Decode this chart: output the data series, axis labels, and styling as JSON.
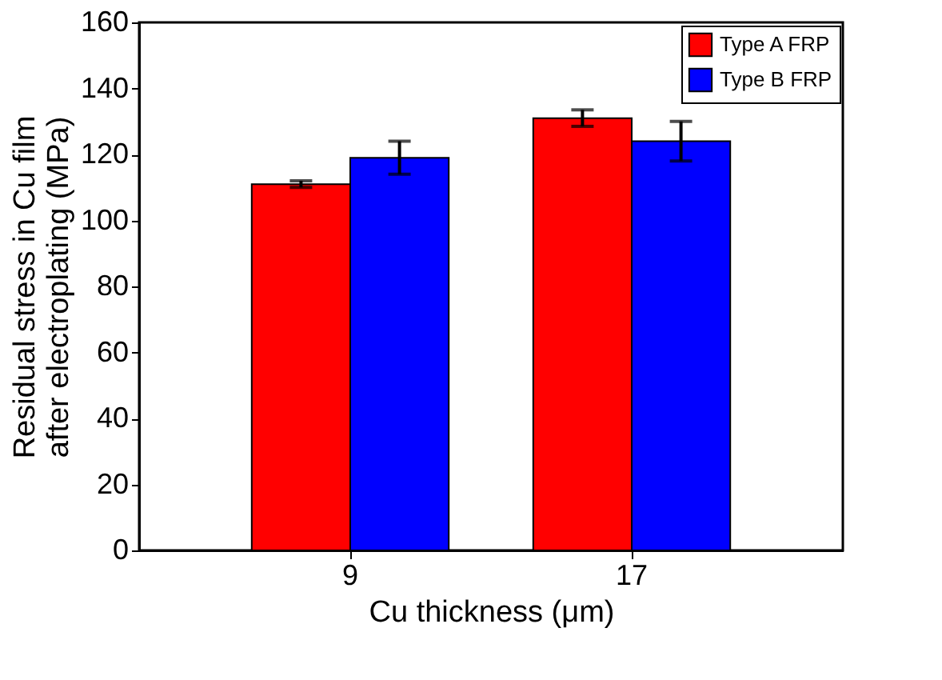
{
  "chart_data": {
    "type": "bar",
    "xlabel": "Cu thickness (μm)",
    "ylabel": "Residual stress in Cu film\nafter electroplating (MPa)",
    "categories": [
      "9",
      "17"
    ],
    "series": [
      {
        "name": "Type A FRP",
        "color": "#ff0000",
        "values": [
          111,
          131
        ],
        "errors": [
          1,
          2.5
        ]
      },
      {
        "name": "Type B FRP",
        "color": "#0000ff",
        "values": [
          119,
          124
        ],
        "errors": [
          5,
          6
        ]
      }
    ],
    "ylim": [
      0,
      160
    ],
    "yticks": [
      0,
      20,
      40,
      60,
      80,
      100,
      120,
      140,
      160
    ],
    "legend": "top right",
    "grid": false
  }
}
